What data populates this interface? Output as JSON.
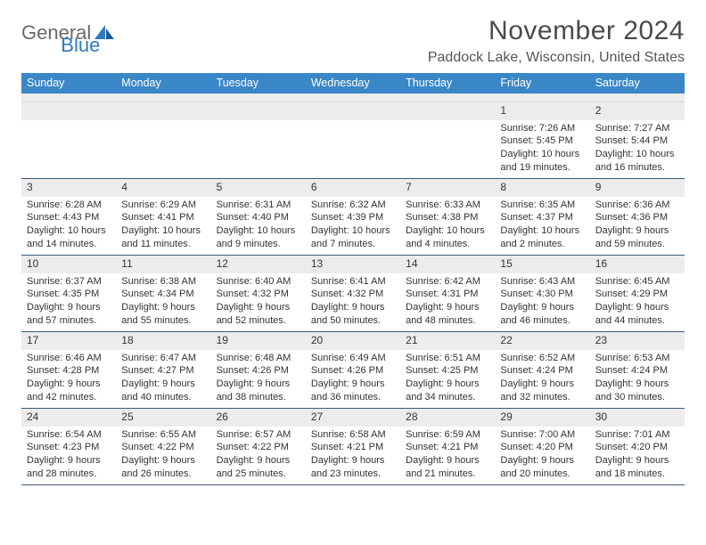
{
  "brand": {
    "part1": "General",
    "part2": "Blue"
  },
  "title": "November 2024",
  "location": "Paddock Lake, Wisconsin, United States",
  "colors": {
    "header_bg": "#3a87c8",
    "header_text": "#ffffff",
    "daynum_bg": "#ececec",
    "border": "#3a5b7a",
    "brand_gray": "#6a6a6a",
    "brand_blue": "#2f7bbf"
  },
  "weekdays": [
    "Sunday",
    "Monday",
    "Tuesday",
    "Wednesday",
    "Thursday",
    "Friday",
    "Saturday"
  ],
  "weeks": [
    [
      null,
      null,
      null,
      null,
      null,
      {
        "n": "1",
        "sunrise": "7:26 AM",
        "sunset": "5:45 PM",
        "daylight": "10 hours and 19 minutes."
      },
      {
        "n": "2",
        "sunrise": "7:27 AM",
        "sunset": "5:44 PM",
        "daylight": "10 hours and 16 minutes."
      }
    ],
    [
      {
        "n": "3",
        "sunrise": "6:28 AM",
        "sunset": "4:43 PM",
        "daylight": "10 hours and 14 minutes."
      },
      {
        "n": "4",
        "sunrise": "6:29 AM",
        "sunset": "4:41 PM",
        "daylight": "10 hours and 11 minutes."
      },
      {
        "n": "5",
        "sunrise": "6:31 AM",
        "sunset": "4:40 PM",
        "daylight": "10 hours and 9 minutes."
      },
      {
        "n": "6",
        "sunrise": "6:32 AM",
        "sunset": "4:39 PM",
        "daylight": "10 hours and 7 minutes."
      },
      {
        "n": "7",
        "sunrise": "6:33 AM",
        "sunset": "4:38 PM",
        "daylight": "10 hours and 4 minutes."
      },
      {
        "n": "8",
        "sunrise": "6:35 AM",
        "sunset": "4:37 PM",
        "daylight": "10 hours and 2 minutes."
      },
      {
        "n": "9",
        "sunrise": "6:36 AM",
        "sunset": "4:36 PM",
        "daylight": "9 hours and 59 minutes."
      }
    ],
    [
      {
        "n": "10",
        "sunrise": "6:37 AM",
        "sunset": "4:35 PM",
        "daylight": "9 hours and 57 minutes."
      },
      {
        "n": "11",
        "sunrise": "6:38 AM",
        "sunset": "4:34 PM",
        "daylight": "9 hours and 55 minutes."
      },
      {
        "n": "12",
        "sunrise": "6:40 AM",
        "sunset": "4:32 PM",
        "daylight": "9 hours and 52 minutes."
      },
      {
        "n": "13",
        "sunrise": "6:41 AM",
        "sunset": "4:32 PM",
        "daylight": "9 hours and 50 minutes."
      },
      {
        "n": "14",
        "sunrise": "6:42 AM",
        "sunset": "4:31 PM",
        "daylight": "9 hours and 48 minutes."
      },
      {
        "n": "15",
        "sunrise": "6:43 AM",
        "sunset": "4:30 PM",
        "daylight": "9 hours and 46 minutes."
      },
      {
        "n": "16",
        "sunrise": "6:45 AM",
        "sunset": "4:29 PM",
        "daylight": "9 hours and 44 minutes."
      }
    ],
    [
      {
        "n": "17",
        "sunrise": "6:46 AM",
        "sunset": "4:28 PM",
        "daylight": "9 hours and 42 minutes."
      },
      {
        "n": "18",
        "sunrise": "6:47 AM",
        "sunset": "4:27 PM",
        "daylight": "9 hours and 40 minutes."
      },
      {
        "n": "19",
        "sunrise": "6:48 AM",
        "sunset": "4:26 PM",
        "daylight": "9 hours and 38 minutes."
      },
      {
        "n": "20",
        "sunrise": "6:49 AM",
        "sunset": "4:26 PM",
        "daylight": "9 hours and 36 minutes."
      },
      {
        "n": "21",
        "sunrise": "6:51 AM",
        "sunset": "4:25 PM",
        "daylight": "9 hours and 34 minutes."
      },
      {
        "n": "22",
        "sunrise": "6:52 AM",
        "sunset": "4:24 PM",
        "daylight": "9 hours and 32 minutes."
      },
      {
        "n": "23",
        "sunrise": "6:53 AM",
        "sunset": "4:24 PM",
        "daylight": "9 hours and 30 minutes."
      }
    ],
    [
      {
        "n": "24",
        "sunrise": "6:54 AM",
        "sunset": "4:23 PM",
        "daylight": "9 hours and 28 minutes."
      },
      {
        "n": "25",
        "sunrise": "6:55 AM",
        "sunset": "4:22 PM",
        "daylight": "9 hours and 26 minutes."
      },
      {
        "n": "26",
        "sunrise": "6:57 AM",
        "sunset": "4:22 PM",
        "daylight": "9 hours and 25 minutes."
      },
      {
        "n": "27",
        "sunrise": "6:58 AM",
        "sunset": "4:21 PM",
        "daylight": "9 hours and 23 minutes."
      },
      {
        "n": "28",
        "sunrise": "6:59 AM",
        "sunset": "4:21 PM",
        "daylight": "9 hours and 21 minutes."
      },
      {
        "n": "29",
        "sunrise": "7:00 AM",
        "sunset": "4:20 PM",
        "daylight": "9 hours and 20 minutes."
      },
      {
        "n": "30",
        "sunrise": "7:01 AM",
        "sunset": "4:20 PM",
        "daylight": "9 hours and 18 minutes."
      }
    ]
  ],
  "labels": {
    "sunrise": "Sunrise: ",
    "sunset": "Sunset: ",
    "daylight": "Daylight: "
  }
}
